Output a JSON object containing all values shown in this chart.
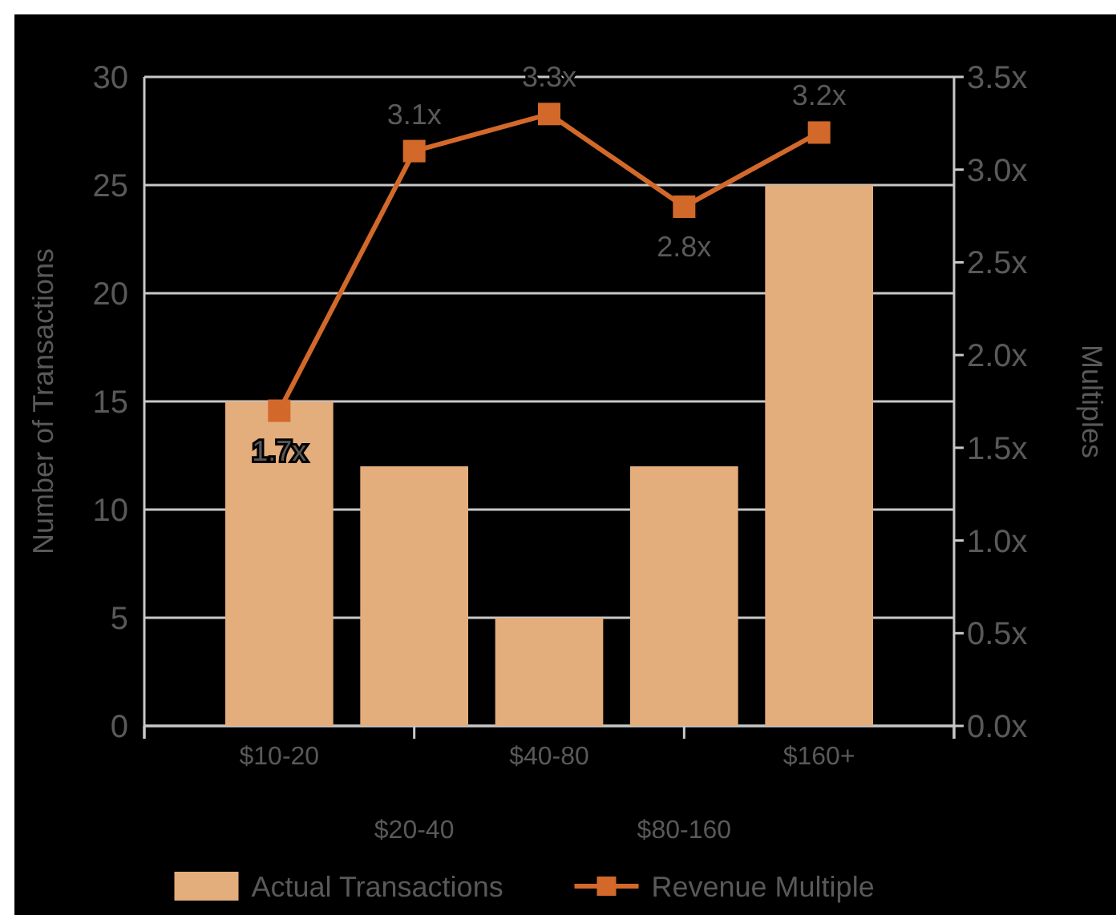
{
  "chart_data": {
    "type": "bar",
    "ylabel": "Number of Transactions",
    "y2label": "Multiples",
    "categories": [
      "$10-20",
      "$20-40",
      "$40-80",
      "$80-160",
      "$160+"
    ],
    "series": [
      {
        "name": "Actual Transactions",
        "color": "#e4ad7c",
        "values": [
          15,
          12,
          5,
          12,
          25
        ]
      },
      {
        "name": "Revenue Multiple",
        "type": "line",
        "axis": "y2",
        "color": "#d2692a",
        "marker": "square",
        "data_labels": true,
        "value_labels": [
          "1.7x",
          "3.1x",
          "3.3x",
          "2.8x",
          "3.2x"
        ],
        "values": [
          1.7,
          3.1,
          3.3,
          2.8,
          3.2
        ]
      }
    ],
    "ylim": [
      0,
      30
    ],
    "yticks": [
      0,
      5,
      10,
      15,
      20,
      25,
      30
    ],
    "y2lim": [
      0,
      3.5
    ],
    "y2ticks": [
      {
        "value": 0,
        "label": "0.0x"
      },
      {
        "value": 0.5,
        "label": "0.5x"
      },
      {
        "value": 1,
        "label": "1.0x"
      },
      {
        "value": 1.5,
        "label": "1.5x"
      },
      {
        "value": 2,
        "label": "2.0x"
      },
      {
        "value": 2.5,
        "label": "2.5x"
      },
      {
        "value": 3,
        "label": "3.0x"
      },
      {
        "value": 3.5,
        "label": "3.5x"
      }
    ],
    "grid": "y",
    "legend": "bottom"
  }
}
